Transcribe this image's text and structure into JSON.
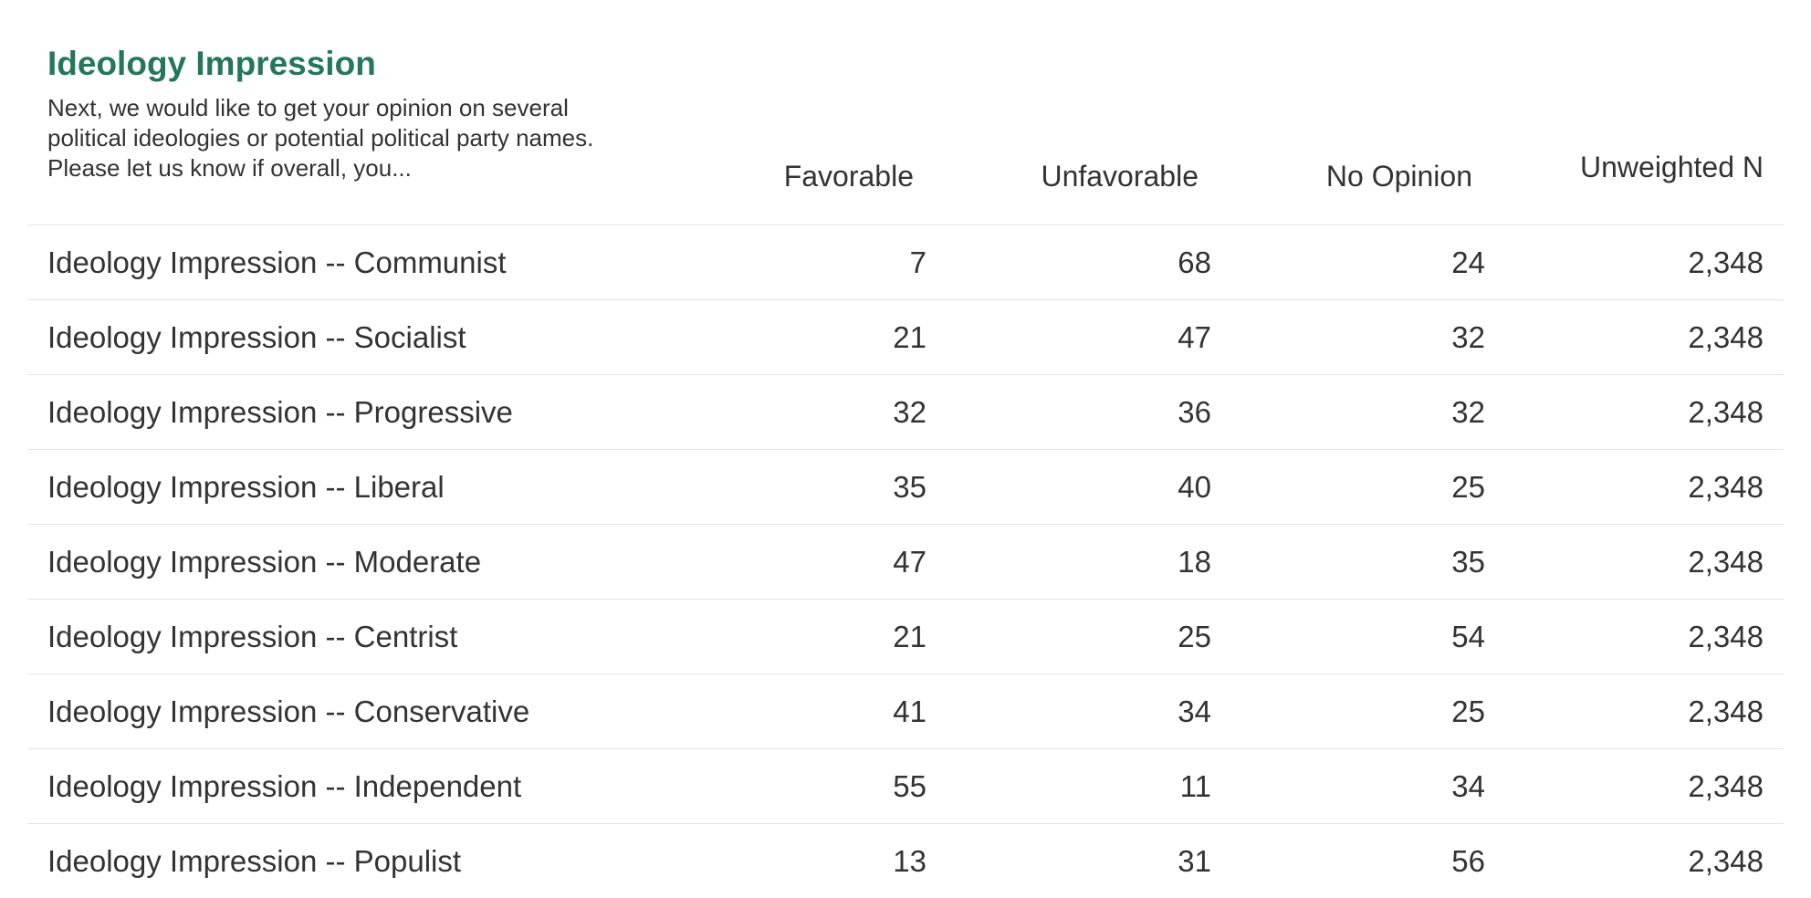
{
  "header": {
    "title": "Ideology Impression",
    "subtitle": "Next, we would like to get your opinion on several political ideologies or potential political party names. Please let us know if overall, you..."
  },
  "table": {
    "columns": [
      "",
      "Favorable",
      "Unfavorable",
      "No Opinion",
      "Unweighted N"
    ],
    "rows": [
      {
        "label": "Ideology Impression -- Communist",
        "favorable": "7",
        "unfavorable": "68",
        "no_opinion": "24",
        "n": "2,348"
      },
      {
        "label": "Ideology Impression -- Socialist",
        "favorable": "21",
        "unfavorable": "47",
        "no_opinion": "32",
        "n": "2,348"
      },
      {
        "label": "Ideology Impression -- Progressive",
        "favorable": "32",
        "unfavorable": "36",
        "no_opinion": "32",
        "n": "2,348"
      },
      {
        "label": "Ideology Impression -- Liberal",
        "favorable": "35",
        "unfavorable": "40",
        "no_opinion": "25",
        "n": "2,348"
      },
      {
        "label": "Ideology Impression -- Moderate",
        "favorable": "47",
        "unfavorable": "18",
        "no_opinion": "35",
        "n": "2,348"
      },
      {
        "label": "Ideology Impression -- Centrist",
        "favorable": "21",
        "unfavorable": "25",
        "no_opinion": "54",
        "n": "2,348"
      },
      {
        "label": "Ideology Impression -- Conservative",
        "favorable": "41",
        "unfavorable": "34",
        "no_opinion": "25",
        "n": "2,348"
      },
      {
        "label": "Ideology Impression -- Independent",
        "favorable": "55",
        "unfavorable": "11",
        "no_opinion": "34",
        "n": "2,348"
      },
      {
        "label": "Ideology Impression -- Populist",
        "favorable": "13",
        "unfavorable": "31",
        "no_opinion": "56",
        "n": "2,348"
      }
    ]
  },
  "colors": {
    "title": "#24775a",
    "text": "#333333",
    "rule": "#e4e4e4"
  },
  "chart_data": {
    "type": "table",
    "title": "Ideology Impression",
    "subtitle": "Next, we would like to get your opinion on several political ideologies or potential political party names. Please let us know if overall, you...",
    "columns": [
      "Favorable",
      "Unfavorable",
      "No Opinion",
      "Unweighted N"
    ],
    "categories": [
      "Ideology Impression -- Communist",
      "Ideology Impression -- Socialist",
      "Ideology Impression -- Progressive",
      "Ideology Impression -- Liberal",
      "Ideology Impression -- Moderate",
      "Ideology Impression -- Centrist",
      "Ideology Impression -- Conservative",
      "Ideology Impression -- Independent",
      "Ideology Impression -- Populist"
    ],
    "series": [
      {
        "name": "Favorable",
        "values": [
          7,
          21,
          32,
          35,
          47,
          21,
          41,
          55,
          13
        ]
      },
      {
        "name": "Unfavorable",
        "values": [
          68,
          47,
          36,
          40,
          18,
          25,
          34,
          11,
          31
        ]
      },
      {
        "name": "No Opinion",
        "values": [
          24,
          32,
          32,
          25,
          35,
          54,
          25,
          34,
          56
        ]
      },
      {
        "name": "Unweighted N",
        "values": [
          2348,
          2348,
          2348,
          2348,
          2348,
          2348,
          2348,
          2348,
          2348
        ]
      }
    ]
  }
}
